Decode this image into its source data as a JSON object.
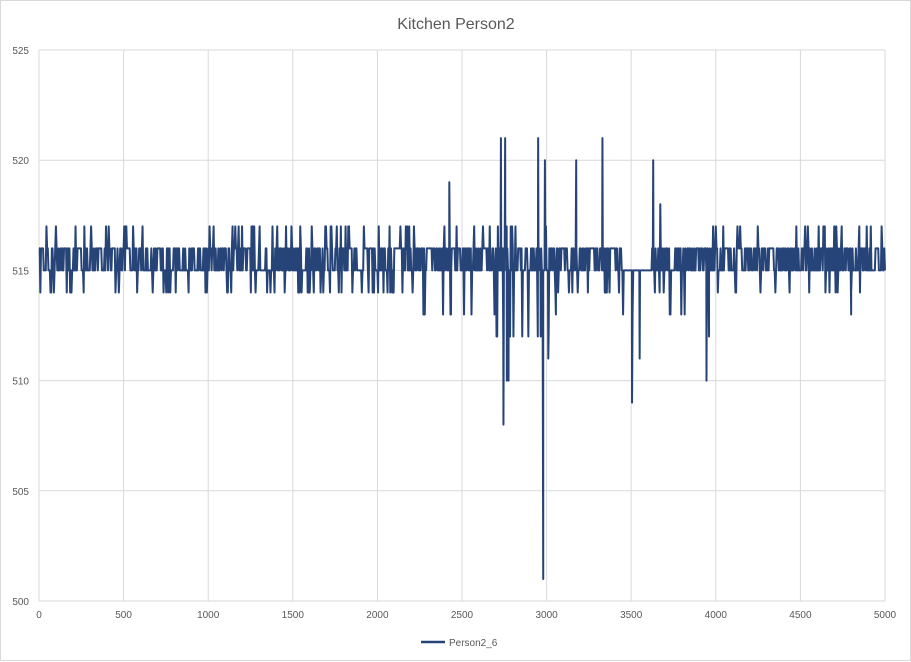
{
  "chart_data": {
    "type": "line",
    "title": "Kitchen Person2",
    "xlabel": "",
    "ylabel": "",
    "xlim": [
      0,
      5000
    ],
    "ylim": [
      500,
      525
    ],
    "x_ticks": [
      0,
      500,
      1000,
      1500,
      2000,
      2500,
      3000,
      3500,
      4000,
      4500,
      5000
    ],
    "y_ticks": [
      500,
      505,
      510,
      515,
      520,
      525
    ],
    "x_tick_labels": [
      "0",
      "500",
      "1000",
      "1500",
      "2000",
      "2500",
      "3000",
      "3500",
      "4000",
      "4500",
      "5000"
    ],
    "y_tick_labels": [
      "500",
      "505",
      "510",
      "515",
      "520",
      "525"
    ],
    "grid": true,
    "legend": "bottom",
    "series": [
      {
        "name": "Person2_6",
        "color": "#264478",
        "baseline_band": [
          515,
          516
        ],
        "noise_segments": [
          {
            "x_start": 0,
            "x_end": 2250,
            "low": 514,
            "high": 517
          },
          {
            "x_start": 2250,
            "x_end": 2700,
            "low": 513,
            "high": 517
          },
          {
            "x_start": 2700,
            "x_end": 3050,
            "low": 512,
            "high": 517
          },
          {
            "x_start": 3050,
            "x_end": 3450,
            "low": 514,
            "high": 516
          },
          {
            "x_start": 3450,
            "x_end": 3620,
            "low": 513,
            "high": 515
          },
          {
            "x_start": 3620,
            "x_end": 3700,
            "low": 514,
            "high": 518
          },
          {
            "x_start": 3700,
            "x_end": 3980,
            "low": 513,
            "high": 516
          },
          {
            "x_start": 3980,
            "x_end": 5000,
            "low": 514,
            "high": 517
          }
        ],
        "spikes": [
          {
            "x": 2425,
            "y": 519
          },
          {
            "x": 2435,
            "y": 513
          },
          {
            "x": 2280,
            "y": 513
          },
          {
            "x": 2730,
            "y": 521
          },
          {
            "x": 2745,
            "y": 508
          },
          {
            "x": 2755,
            "y": 521
          },
          {
            "x": 2765,
            "y": 510
          },
          {
            "x": 2775,
            "y": 510
          },
          {
            "x": 2950,
            "y": 521
          },
          {
            "x": 2965,
            "y": 512
          },
          {
            "x": 2980,
            "y": 501
          },
          {
            "x": 2990,
            "y": 520
          },
          {
            "x": 3010,
            "y": 511
          },
          {
            "x": 3055,
            "y": 513
          },
          {
            "x": 3175,
            "y": 520
          },
          {
            "x": 3330,
            "y": 521
          },
          {
            "x": 3505,
            "y": 509
          },
          {
            "x": 3550,
            "y": 511
          },
          {
            "x": 3630,
            "y": 520
          },
          {
            "x": 3945,
            "y": 510
          },
          {
            "x": 3960,
            "y": 512
          },
          {
            "x": 4800,
            "y": 513
          }
        ]
      }
    ]
  }
}
